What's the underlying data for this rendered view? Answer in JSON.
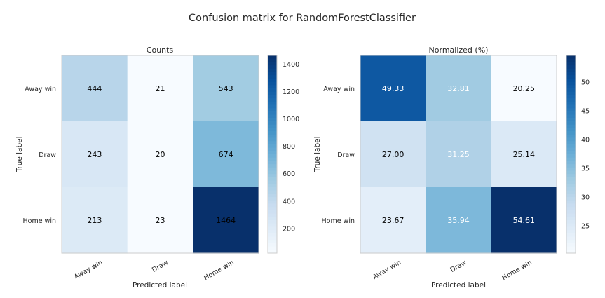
{
  "figure": {
    "title": "Confusion matrix for RandomForestClassifier"
  },
  "chart_data": [
    {
      "type": "heatmap",
      "title": "Counts",
      "xlabel": "Predicted label",
      "ylabel": "True label",
      "x_categories": [
        "Away win",
        "Draw",
        "Home win"
      ],
      "y_categories": [
        "Away win",
        "Draw",
        "Home win"
      ],
      "values": [
        [
          444,
          21,
          543
        ],
        [
          243,
          20,
          674
        ],
        [
          213,
          23,
          1464
        ]
      ],
      "value_labels": [
        [
          "444",
          "21",
          "543"
        ],
        [
          "243",
          "20",
          "674"
        ],
        [
          "213",
          "23",
          "1464"
        ]
      ],
      "colormap": "Blues",
      "vmin": 20,
      "vmax": 1464,
      "colorbar_ticks": [
        200,
        400,
        600,
        800,
        1000,
        1200,
        1400
      ],
      "colorbar_tick_labels": [
        "200",
        "400",
        "600",
        "800",
        "1000",
        "1200",
        "1400"
      ],
      "grid": false
    },
    {
      "type": "heatmap",
      "title": "Normalized (%)",
      "xlabel": "Predicted label",
      "ylabel": "True label",
      "x_categories": [
        "Away win",
        "Draw",
        "Home win"
      ],
      "y_categories": [
        "Away win",
        "Draw",
        "Home win"
      ],
      "values": [
        [
          49.33,
          32.81,
          20.25
        ],
        [
          27.0,
          31.25,
          25.14
        ],
        [
          23.67,
          35.94,
          54.61
        ]
      ],
      "value_labels": [
        [
          "49.33",
          "32.81",
          "20.25"
        ],
        [
          "27.00",
          "31.25",
          "25.14"
        ],
        [
          "23.67",
          "35.94",
          "54.61"
        ]
      ],
      "colormap": "Blues",
      "vmin": 20.25,
      "vmax": 54.61,
      "colorbar_ticks": [
        25,
        30,
        35,
        40,
        45,
        50
      ],
      "colorbar_tick_labels": [
        "25",
        "30",
        "35",
        "40",
        "45",
        "50"
      ],
      "grid": false
    }
  ]
}
